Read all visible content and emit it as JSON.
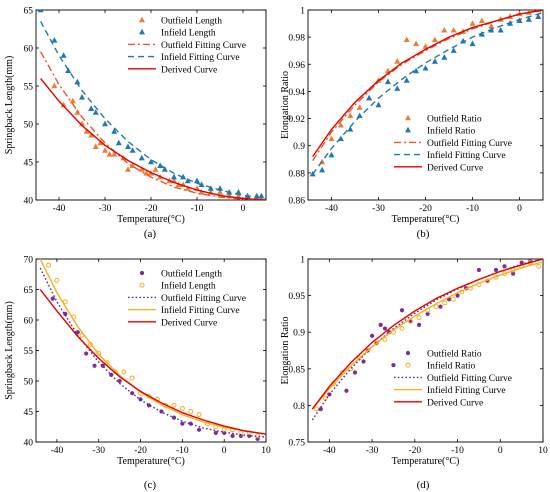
{
  "colors": {
    "outfield_marker_ab": "#ED7D31",
    "infield_marker_ab": "#1F77B4",
    "outfield_fit_ab": "#E4572E",
    "infield_fit_ab": "#1F77B4",
    "derived": "#E60000",
    "outfield_marker_cd": "#7B2C9E",
    "infield_marker_cd": "#F5B021",
    "outfield_fit_cd": "#5B2A86",
    "infield_fit_cd": "#F5B021"
  },
  "chart_data": [
    {
      "panel_label": "(a)",
      "type": "line",
      "xlabel": "Temperature(°C)",
      "ylabel": "Springback Length(mm)",
      "xlim": [
        -45,
        5
      ],
      "ylim": [
        40,
        65
      ],
      "xticks": [
        -40,
        -30,
        -20,
        -10,
        0
      ],
      "yticks": [
        40,
        45,
        50,
        55,
        60,
        65
      ],
      "grid": false,
      "legend_placement": "top-right",
      "series": [
        {
          "name": "Outfield Length",
          "kind": "scatter",
          "marker": "triangle",
          "color": "#ED7D31",
          "x": [
            -41,
            -39,
            -37,
            -36,
            -35,
            -34,
            -33,
            -32,
            -31,
            -30,
            -29,
            -28,
            -26,
            -25,
            -24,
            -22,
            -21,
            -20,
            -19,
            -18,
            -16,
            -15,
            -14,
            -13,
            -12,
            -10,
            -9,
            -7,
            -5,
            -3,
            -1,
            1,
            3,
            4
          ],
          "y": [
            55.0,
            52.5,
            53.0,
            51.5,
            50.0,
            49.0,
            48.5,
            47.0,
            47.5,
            46.5,
            46.0,
            46.0,
            45.5,
            44.0,
            44.5,
            44.0,
            43.5,
            43.5,
            44.0,
            43.0,
            42.5,
            42.5,
            42.0,
            42.0,
            41.5,
            41.5,
            41.0,
            41.0,
            41.0,
            40.5,
            40.5,
            40.5,
            40.0,
            40.0
          ]
        },
        {
          "name": "Infield Length",
          "kind": "scatter",
          "marker": "triangle",
          "color": "#1F77B4",
          "x": [
            -44,
            -41,
            -39,
            -38,
            -36,
            -35,
            -33,
            -32,
            -30,
            -28,
            -27,
            -25,
            -24,
            -22,
            -20,
            -18,
            -17,
            -15,
            -13,
            -12,
            -10,
            -9,
            -7,
            -5,
            -3,
            -1,
            1,
            3,
            4
          ],
          "y": [
            65.0,
            61.0,
            59.0,
            57.0,
            55.5,
            53.5,
            52.0,
            51.5,
            50.0,
            49.0,
            47.5,
            47.0,
            46.5,
            45.5,
            45.0,
            44.5,
            44.0,
            43.0,
            43.0,
            42.5,
            42.5,
            42.0,
            41.5,
            41.5,
            41.0,
            41.0,
            40.5,
            40.5,
            40.5
          ]
        },
        {
          "name": "Outfield Fitting Curve",
          "kind": "line",
          "dash": "dashdot",
          "color": "#E4572E",
          "x": [
            -44,
            -40,
            -35,
            -30,
            -25,
            -20,
            -15,
            -10,
            -5,
            0,
            5
          ],
          "y": [
            59.5,
            55.2,
            50.9,
            47.5,
            44.8,
            43.0,
            41.7,
            40.9,
            40.4,
            40.1,
            40.0
          ]
        },
        {
          "name": "Infield Fitting Curve",
          "kind": "line",
          "dash": "dashed",
          "color": "#1F77B4",
          "x": [
            -44,
            -40,
            -35,
            -30,
            -25,
            -20,
            -15,
            -10,
            -5,
            0,
            5
          ],
          "y": [
            63.5,
            59.0,
            54.4,
            50.7,
            47.7,
            45.3,
            43.5,
            42.2,
            41.3,
            40.6,
            40.2
          ]
        },
        {
          "name": "Derived Curve",
          "kind": "line",
          "dash": "solid",
          "color": "#E60000",
          "x": [
            -44,
            -40,
            -35,
            -30,
            -25,
            -20,
            -15,
            -10,
            -5,
            0,
            5
          ],
          "y": [
            56.0,
            53.0,
            49.8,
            47.2,
            45.2,
            43.6,
            42.3,
            41.3,
            40.6,
            40.2,
            40.0
          ]
        }
      ]
    },
    {
      "panel_label": "(b)",
      "type": "line",
      "xlabel": "Temperature(°C)",
      "ylabel": "Elongation Ratio",
      "xlim": [
        -45,
        5
      ],
      "ylim": [
        0.86,
        1.0
      ],
      "xticks": [
        -40,
        -30,
        -20,
        -10,
        0
      ],
      "yticks": [
        0.86,
        0.88,
        0.9,
        0.92,
        0.94,
        0.96,
        0.98,
        1
      ],
      "grid": false,
      "legend_placement": "bottom-right",
      "series": [
        {
          "name": "Outfield Ratio",
          "kind": "scatter",
          "marker": "triangle",
          "color": "#ED7D31",
          "x": [
            -42,
            -40,
            -38,
            -36,
            -34,
            -32,
            -30,
            -28,
            -26,
            -24,
            -22,
            -20,
            -18,
            -16,
            -14,
            -12,
            -10,
            -8,
            -6,
            -4,
            -2,
            0,
            2,
            4
          ],
          "y": [
            0.888,
            0.905,
            0.915,
            0.922,
            0.928,
            0.935,
            0.948,
            0.955,
            0.962,
            0.978,
            0.975,
            0.973,
            0.978,
            0.985,
            0.985,
            0.984,
            0.99,
            0.992,
            0.988,
            0.993,
            0.995,
            0.997,
            0.998,
            1.0
          ]
        },
        {
          "name": "Infield Ratio",
          "kind": "scatter",
          "marker": "triangle",
          "color": "#1F77B4",
          "x": [
            -44,
            -42,
            -40,
            -38,
            -36,
            -34,
            -32,
            -30,
            -28,
            -26,
            -24,
            -22,
            -20,
            -18,
            -16,
            -14,
            -12,
            -10,
            -8,
            -6,
            -4,
            -2,
            0,
            2,
            4
          ],
          "y": [
            0.879,
            0.882,
            0.893,
            0.905,
            0.912,
            0.922,
            0.935,
            0.93,
            0.947,
            0.942,
            0.948,
            0.955,
            0.957,
            0.962,
            0.965,
            0.97,
            0.977,
            0.975,
            0.982,
            0.985,
            0.985,
            0.99,
            0.992,
            0.993,
            0.995
          ]
        },
        {
          "name": "Outfield Fitting Curve",
          "kind": "line",
          "dash": "dashdot",
          "color": "#E4572E",
          "x": [
            -44,
            -40,
            -35,
            -30,
            -25,
            -20,
            -15,
            -10,
            -5,
            0,
            5
          ],
          "y": [
            0.889,
            0.91,
            0.93,
            0.947,
            0.96,
            0.97,
            0.979,
            0.986,
            0.992,
            0.997,
            1.0
          ]
        },
        {
          "name": "Infield Fitting Curve",
          "kind": "line",
          "dash": "dashed",
          "color": "#1F77B4",
          "x": [
            -44,
            -40,
            -35,
            -30,
            -25,
            -20,
            -15,
            -10,
            -5,
            0,
            5
          ],
          "y": [
            0.879,
            0.898,
            0.918,
            0.935,
            0.949,
            0.961,
            0.971,
            0.98,
            0.987,
            0.993,
            0.998
          ]
        },
        {
          "name": "Derived Curve",
          "kind": "line",
          "dash": "solid",
          "color": "#E60000",
          "x": [
            -44,
            -40,
            -35,
            -30,
            -25,
            -20,
            -15,
            -10,
            -5,
            0,
            5
          ],
          "y": [
            0.892,
            0.912,
            0.932,
            0.948,
            0.961,
            0.971,
            0.98,
            0.987,
            0.992,
            0.997,
            1.0
          ]
        }
      ]
    },
    {
      "panel_label": "(c)",
      "type": "line",
      "xlabel": "Temperature(°C)",
      "ylabel": "Springback Length(mm)",
      "xlim": [
        -45,
        10
      ],
      "ylim": [
        40,
        70
      ],
      "xticks": [
        -40,
        -30,
        -20,
        -10,
        0,
        10
      ],
      "yticks": [
        40,
        45,
        50,
        55,
        60,
        65,
        70
      ],
      "grid": false,
      "legend_placement": "top-right",
      "series": [
        {
          "name": "Outfield Length",
          "kind": "scatter",
          "marker": "dot",
          "color": "#7B2C9E",
          "x": [
            -41,
            -38,
            -35,
            -33,
            -31,
            -29,
            -27,
            -25,
            -22,
            -20,
            -18,
            -15,
            -12,
            -10,
            -8,
            -6,
            -2,
            0,
            2,
            4,
            6,
            8
          ],
          "y": [
            63.5,
            61.0,
            58.0,
            54.5,
            52.5,
            52.5,
            51.0,
            50.0,
            48.0,
            47.0,
            46.0,
            45.0,
            44.0,
            43.0,
            43.0,
            42.0,
            41.5,
            41.5,
            41.0,
            41.0,
            41.0,
            40.5
          ]
        },
        {
          "name": "Infield Length",
          "kind": "scatter",
          "marker": "circle-open",
          "color": "#F5B021",
          "x": [
            -42,
            -40,
            -38,
            -36,
            -34,
            -32,
            -30,
            -28,
            -26,
            -24,
            -22,
            -20,
            -18,
            -16,
            -14,
            -12,
            -10,
            -8,
            -6,
            -4,
            -2,
            0,
            2,
            4,
            6,
            8
          ],
          "y": [
            69.0,
            66.5,
            63.0,
            60.5,
            57.5,
            56.0,
            54.5,
            53.0,
            51.5,
            51.5,
            50.5,
            48.0,
            47.5,
            47.0,
            46.0,
            46.0,
            45.5,
            45.0,
            44.5,
            43.0,
            42.5,
            42.0,
            42.0,
            41.5,
            41.5,
            41.0
          ]
        },
        {
          "name": "Outfield Fitting Curve",
          "kind": "line",
          "dash": "dotted",
          "color": "#5B2A86",
          "x": [
            -44,
            -40,
            -35,
            -30,
            -25,
            -20,
            -15,
            -10,
            -5,
            0,
            5,
            10
          ],
          "y": [
            68.5,
            63.0,
            57.5,
            53.1,
            49.6,
            46.9,
            44.9,
            43.4,
            42.3,
            41.6,
            41.1,
            40.8
          ]
        },
        {
          "name": "Infield Fitting Curve",
          "kind": "line",
          "dash": "solid",
          "color": "#F5B021",
          "x": [
            -44,
            -40,
            -35,
            -30,
            -25,
            -20,
            -15,
            -10,
            -5,
            0,
            5,
            10
          ],
          "y": [
            70.0,
            64.5,
            58.9,
            54.4,
            50.9,
            48.2,
            46.1,
            44.5,
            43.3,
            42.4,
            41.8,
            41.3
          ]
        },
        {
          "name": "Derived Curve",
          "kind": "line",
          "dash": "solid",
          "color": "#E60000",
          "x": [
            -44,
            -40,
            -35,
            -30,
            -25,
            -20,
            -15,
            -10,
            -5,
            0,
            5,
            10
          ],
          "y": [
            65.0,
            61.5,
            57.3,
            53.7,
            50.7,
            48.3,
            46.4,
            44.8,
            43.6,
            42.6,
            41.8,
            41.3
          ]
        }
      ]
    },
    {
      "panel_label": "(d)",
      "type": "line",
      "xlabel": "Temperature(°C)",
      "ylabel": "Elongation Ratio",
      "xlim": [
        -45,
        10
      ],
      "ylim": [
        0.75,
        1.0
      ],
      "xticks": [
        -40,
        -30,
        -20,
        -10,
        0,
        10
      ],
      "yticks": [
        0.75,
        0.8,
        0.85,
        0.9,
        0.95,
        1
      ],
      "grid": false,
      "legend_placement": "bottom-right",
      "series": [
        {
          "name": "Outfield Ratio",
          "kind": "scatter",
          "marker": "dot",
          "color": "#7B2C9E",
          "x": [
            -42,
            -40,
            -36,
            -34,
            -32,
            -31,
            -30,
            -29,
            -28,
            -27,
            -26,
            -25,
            -23,
            -21,
            -19,
            -17,
            -14,
            -12,
            -10,
            -8,
            -5,
            -3,
            -1,
            1,
            3,
            5,
            7
          ],
          "y": [
            0.795,
            0.815,
            0.82,
            0.845,
            0.86,
            0.875,
            0.895,
            0.885,
            0.91,
            0.905,
            0.9,
            0.855,
            0.93,
            0.915,
            0.91,
            0.925,
            0.935,
            0.945,
            0.95,
            0.96,
            0.985,
            0.97,
            0.985,
            0.99,
            0.98,
            0.995,
            0.997
          ]
        },
        {
          "name": "Infield Ratio",
          "kind": "scatter",
          "marker": "circle-open",
          "color": "#F5B021",
          "x": [
            -43,
            -41,
            -39,
            -37,
            -35,
            -33,
            -31,
            -29,
            -27,
            -25,
            -23,
            -21,
            -19,
            -17,
            -15,
            -13,
            -11,
            -9,
            -7,
            -5,
            -3,
            -1,
            1,
            3,
            5,
            7,
            9
          ],
          "y": [
            0.795,
            0.81,
            0.83,
            0.845,
            0.85,
            0.865,
            0.875,
            0.885,
            0.89,
            0.9,
            0.905,
            0.915,
            0.92,
            0.93,
            0.935,
            0.94,
            0.945,
            0.955,
            0.96,
            0.965,
            0.97,
            0.975,
            0.98,
            0.985,
            0.99,
            0.995,
            0.99
          ]
        },
        {
          "name": "Outfield Fitting Curve",
          "kind": "line",
          "dash": "dotted",
          "color": "#5B2A86",
          "x": [
            -44,
            -40,
            -35,
            -30,
            -25,
            -20,
            -15,
            -10,
            -5,
            0,
            5,
            10
          ],
          "y": [
            0.78,
            0.815,
            0.85,
            0.88,
            0.905,
            0.926,
            0.944,
            0.959,
            0.972,
            0.983,
            0.993,
            1.0
          ]
        },
        {
          "name": "Infield Fitting Curve",
          "kind": "line",
          "dash": "solid",
          "color": "#F5B021",
          "x": [
            -44,
            -40,
            -35,
            -30,
            -25,
            -20,
            -15,
            -10,
            -5,
            0,
            5,
            10
          ],
          "y": [
            0.795,
            0.823,
            0.854,
            0.88,
            0.903,
            0.922,
            0.939,
            0.954,
            0.967,
            0.978,
            0.988,
            0.996
          ]
        },
        {
          "name": "Derived Curve",
          "kind": "line",
          "dash": "solid",
          "color": "#E60000",
          "x": [
            -44,
            -40,
            -35,
            -30,
            -25,
            -20,
            -15,
            -10,
            -5,
            0,
            5,
            10
          ],
          "y": [
            0.795,
            0.826,
            0.858,
            0.886,
            0.909,
            0.929,
            0.946,
            0.96,
            0.972,
            0.983,
            0.992,
            1.0
          ]
        }
      ]
    }
  ]
}
